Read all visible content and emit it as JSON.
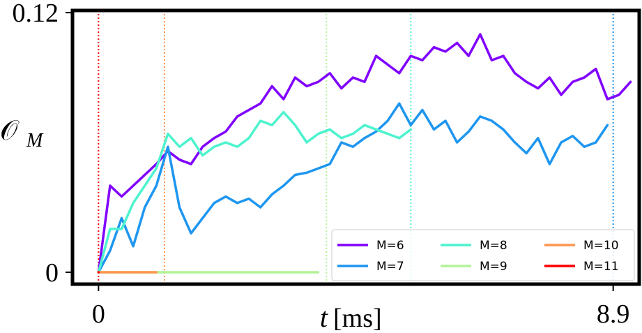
{
  "chart_data": {
    "type": "line",
    "xlabel": {
      "var": "t",
      "unit": "[ms]"
    },
    "ylabel": {
      "main": "𝒪",
      "sub": "M"
    },
    "xlim": [
      -0.45,
      9.35
    ],
    "ylim": [
      -0.0055,
      0.121
    ],
    "xticks": [
      0,
      8.9
    ],
    "yticks": [
      0,
      0.12
    ],
    "legend": "lower right",
    "x": [
      0,
      0.2,
      0.4,
      0.6,
      0.8,
      1.0,
      1.2,
      1.4,
      1.6,
      1.8,
      2.0,
      2.2,
      2.4,
      2.6,
      2.8,
      3.0,
      3.2,
      3.4,
      3.6,
      3.8,
      4.0,
      4.2,
      4.4,
      4.6,
      4.8,
      5.0,
      5.2,
      5.4,
      5.6,
      5.8,
      6.0,
      6.2,
      6.4,
      6.6,
      6.8,
      7.0,
      7.2,
      7.4,
      7.6,
      7.8,
      8.0,
      8.2,
      8.4,
      8.6,
      8.8,
      9.0,
      9.2
    ],
    "series": [
      {
        "name": "M=6",
        "color": "#8000ff",
        "values": [
          0,
          0.04,
          0.035,
          0.04,
          0.045,
          0.05,
          0.056,
          0.052,
          0.05,
          0.058,
          0.062,
          0.065,
          0.072,
          0.075,
          0.078,
          0.086,
          0.08,
          0.09,
          0.086,
          0.088,
          0.092,
          0.085,
          0.09,
          0.088,
          0.1,
          0.096,
          0.092,
          0.1,
          0.098,
          0.104,
          0.102,
          0.106,
          0.1,
          0.11,
          0.098,
          0.1,
          0.092,
          0.088,
          0.085,
          0.09,
          0.082,
          0.088,
          0.09,
          0.094,
          0.08,
          0.082,
          0.088
        ]
      },
      {
        "name": "M=7",
        "color": "#1e96f0",
        "values": [
          0,
          0.01,
          0.025,
          0.012,
          0.03,
          0.04,
          0.058,
          0.03,
          0.018,
          0.025,
          0.032,
          0.035,
          0.032,
          0.034,
          0.03,
          0.036,
          0.04,
          0.045,
          0.046,
          0.048,
          0.05,
          0.06,
          0.058,
          0.062,
          0.065,
          0.07,
          0.078,
          0.068,
          0.075,
          0.066,
          0.07,
          0.06,
          0.065,
          0.072,
          0.07,
          0.066,
          0.06,
          0.055,
          0.062,
          0.05,
          0.06,
          0.063,
          0.058,
          0.06,
          0.068,
          null,
          null
        ]
      },
      {
        "name": "M=8",
        "color": "#4df3ce",
        "values": [
          0,
          0.02,
          0.02,
          0.032,
          0.04,
          0.048,
          0.064,
          0.058,
          0.062,
          0.054,
          0.058,
          0.06,
          0.058,
          0.062,
          0.07,
          0.068,
          0.074,
          0.068,
          0.06,
          0.064,
          0.066,
          0.062,
          0.064,
          0.068,
          0.066,
          0.064,
          0.062,
          0.066,
          null,
          null,
          null,
          null,
          null,
          null,
          null,
          null,
          null,
          null,
          null,
          null,
          null,
          null,
          null,
          null,
          null,
          null,
          null
        ]
      },
      {
        "name": "M=9",
        "color": "#b2f396",
        "values": [
          0,
          0,
          0,
          0,
          0,
          0,
          0,
          0,
          0,
          0,
          0,
          0,
          0,
          0,
          0,
          0,
          0,
          0,
          0,
          0,
          null,
          null,
          null,
          null,
          null,
          null,
          null,
          null,
          null,
          null,
          null,
          null,
          null,
          null,
          null,
          null,
          null,
          null,
          null,
          null,
          null,
          null,
          null,
          null,
          null,
          null,
          null
        ]
      },
      {
        "name": "M=10",
        "color": "#ff964f",
        "values": [
          0,
          0,
          0,
          0,
          0,
          0,
          null,
          null,
          null,
          null,
          null,
          null,
          null,
          null,
          null,
          null,
          null,
          null,
          null,
          null,
          null,
          null,
          null,
          null,
          null,
          null,
          null,
          null,
          null,
          null,
          null,
          null,
          null,
          null,
          null,
          null,
          null,
          null,
          null,
          null,
          null,
          null,
          null,
          null,
          null,
          null,
          null
        ]
      },
      {
        "name": "M=11",
        "color": "#ff0000",
        "values": [
          0,
          null,
          null,
          null,
          null,
          null,
          null,
          null,
          null,
          null,
          null,
          null,
          null,
          null,
          null,
          null,
          null,
          null,
          null,
          null,
          null,
          null,
          null,
          null,
          null,
          null,
          null,
          null,
          null,
          null,
          null,
          null,
          null,
          null,
          null,
          null,
          null,
          null,
          null,
          null,
          null,
          null,
          null,
          null,
          null,
          null,
          null
        ]
      }
    ],
    "vlines": [
      {
        "x": 0,
        "color": "#ff0000"
      },
      {
        "x": 1.14,
        "color": "#ff964f"
      },
      {
        "x": 3.94,
        "color": "#b2f396"
      },
      {
        "x": 5.4,
        "color": "#4df3ce"
      },
      {
        "x": 8.9,
        "color": "#1e96f0"
      }
    ]
  }
}
